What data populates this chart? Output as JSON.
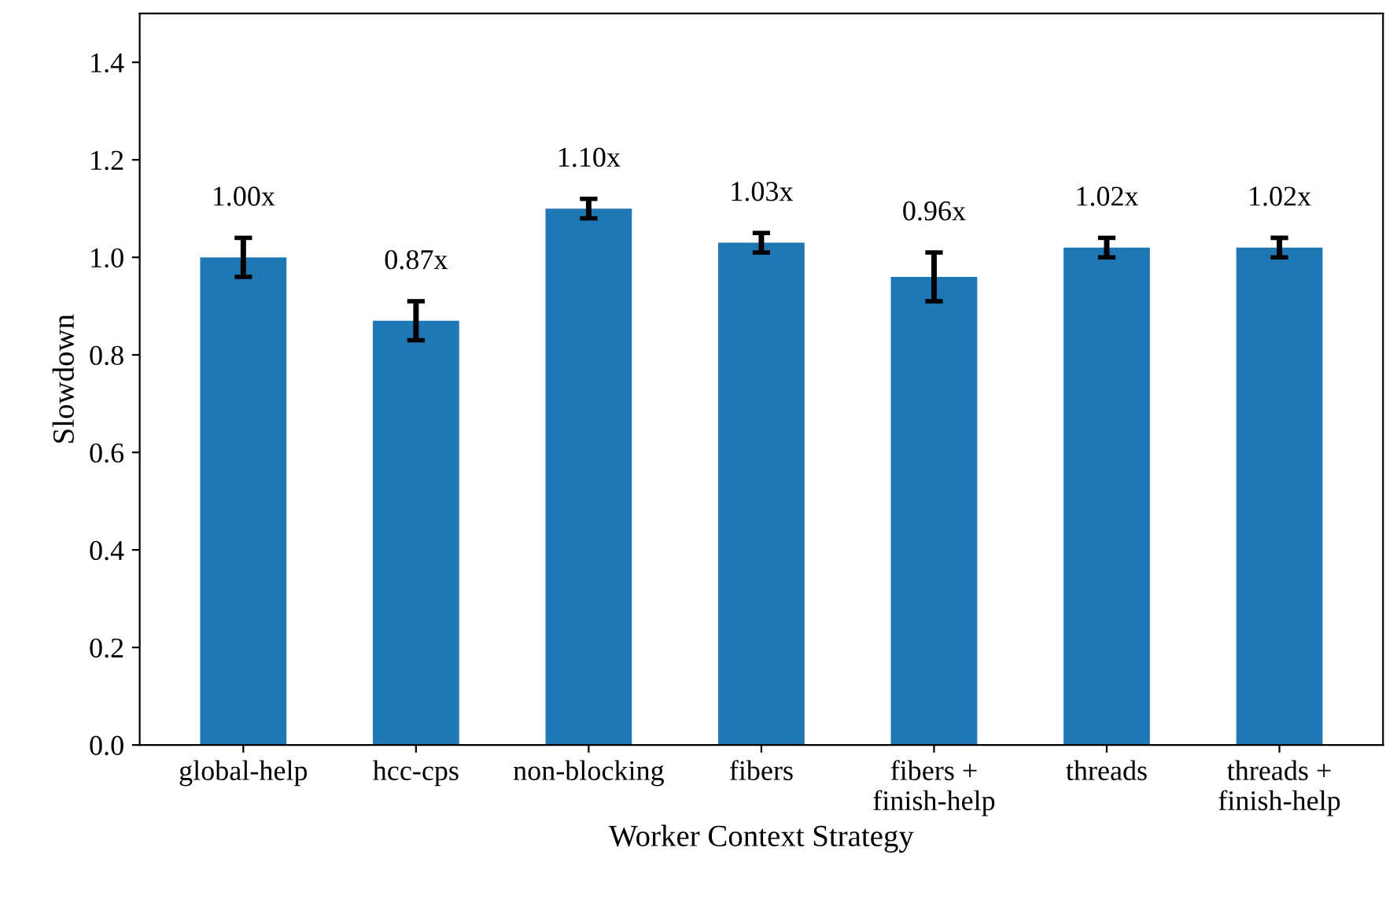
{
  "chart_data": {
    "type": "bar",
    "xlabel": "Worker Context Strategy",
    "ylabel": "Slowdown",
    "categories": [
      "global-help",
      "hcc-cps",
      "non-blocking",
      "fibers",
      "fibers +\nfinish-help",
      "threads",
      "threads +\nfinish-help"
    ],
    "values": [
      1.0,
      0.87,
      1.1,
      1.03,
      0.96,
      1.02,
      1.02
    ],
    "errors": [
      0.04,
      0.04,
      0.02,
      0.02,
      0.05,
      0.02,
      0.02
    ],
    "value_labels": [
      "1.00x",
      "0.87x",
      "1.10x",
      "1.03x",
      "0.96x",
      "1.02x",
      "1.02x"
    ],
    "color": "#1f77b4",
    "ylim": [
      0,
      1.5
    ],
    "yticks": [
      {
        "value": 0,
        "label": "0.0"
      },
      0.2,
      0.4,
      0.6,
      0.8,
      {
        "value": 1,
        "label": "1.0"
      },
      1.2,
      1.4
    ],
    "grid": false
  }
}
